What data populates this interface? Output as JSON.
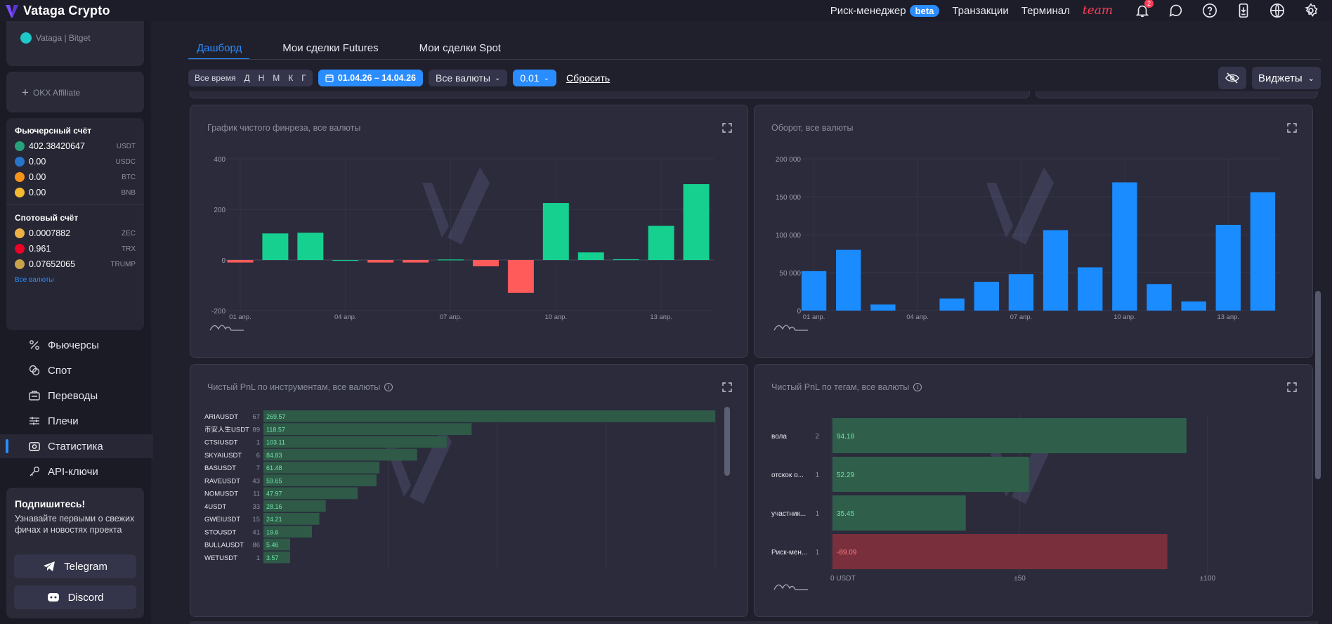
{
  "app": {
    "name": "Vataga Crypto"
  },
  "topnav": {
    "risk_manager": "Риск-менеджер",
    "beta": "beta",
    "transactions": "Транзакции",
    "terminal": "Терминал",
    "team": "team",
    "notif_count": "2"
  },
  "sidebar": {
    "exchange": "Vataga | Bitget",
    "okx": "OKX Affiliate",
    "futures_account": {
      "title": "Фьючерсный счёт",
      "rows": [
        {
          "value": "402.38420647",
          "currency": "USDT",
          "color": "#26a17b"
        },
        {
          "value": "0.00",
          "currency": "USDC",
          "color": "#2775ca"
        },
        {
          "value": "0.00",
          "currency": "BTC",
          "color": "#f7931a"
        },
        {
          "value": "0.00",
          "currency": "BNB",
          "color": "#f3ba2f"
        }
      ]
    },
    "spot_account": {
      "title": "Спотовый счёт",
      "rows": [
        {
          "value": "0.0007882",
          "currency": "ZEC",
          "color": "#ecb244"
        },
        {
          "value": "0.961",
          "currency": "TRX",
          "color": "#ef0027"
        },
        {
          "value": "0.07652065",
          "currency": "TRUMP",
          "color": "#c9a24b"
        }
      ],
      "all_link": "Все валюты"
    },
    "menu": [
      {
        "label": "Фьючерсы",
        "icon": "percent-icon"
      },
      {
        "label": "Спот",
        "icon": "coins-icon"
      },
      {
        "label": "Переводы",
        "icon": "transfer-icon"
      },
      {
        "label": "Плечи",
        "icon": "sliders-icon"
      },
      {
        "label": "Статистика",
        "icon": "stats-icon"
      },
      {
        "label": "API-ключи",
        "icon": "key-icon"
      }
    ],
    "subscribe": {
      "title": "Подпишитесь!",
      "text1": "Узнавайте первыми о свежих",
      "text2": "фичах и новостях проекта",
      "telegram": "Telegram",
      "discord": "Discord"
    }
  },
  "tabs": [
    "Дашборд",
    "Мои сделки Futures",
    "Мои сделки Spot"
  ],
  "filters": {
    "periods": [
      "Все время",
      "Д",
      "Н",
      "М",
      "К",
      "Г"
    ],
    "date_range": "01.04.26 – 14.04.26",
    "currencies": "Все валюты",
    "threshold": "0.01",
    "reset": "Сбросить",
    "widgets": "Виджеты"
  },
  "panels": {
    "netfin": "График чистого финреза, все валюты",
    "turnover": "Оборот, все валюты",
    "pnl_instr": "Чистый PnL по инструментам, все валюты",
    "pnl_tags": "Чистый PnL по тегам, все валюты"
  },
  "chart_data": [
    {
      "type": "bar",
      "title": "График чистого финреза, все валюты",
      "x_tick_labels": [
        "01 апр.",
        "04 апр.",
        "07 апр.",
        "10 апр.",
        "13 апр."
      ],
      "categories": [
        "01",
        "02",
        "03",
        "04",
        "05",
        "06",
        "07",
        "08",
        "09",
        "10",
        "11",
        "12",
        "13",
        "14"
      ],
      "values": [
        -10,
        105,
        108,
        0,
        -10,
        -10,
        2,
        -25,
        -130,
        225,
        30,
        3,
        135,
        300
      ],
      "ylim": [
        -200,
        400
      ],
      "yticks": [
        400,
        200,
        0,
        -200
      ],
      "colors": {
        "positive": "#16d08f",
        "negative": "#ff5b5b"
      }
    },
    {
      "type": "bar",
      "title": "Оборот, все валюты",
      "x_tick_labels": [
        "01 апр.",
        "04 апр.",
        "07 апр.",
        "10 апр.",
        "13 апр."
      ],
      "categories": [
        "01",
        "02",
        "03",
        "04",
        "05",
        "06",
        "07",
        "08",
        "09",
        "10",
        "11",
        "12",
        "13",
        "14"
      ],
      "values": [
        52000,
        80000,
        8000,
        0,
        16000,
        38000,
        48000,
        106000,
        57000,
        169000,
        35000,
        12000,
        113000,
        156000
      ],
      "ylim": [
        0,
        200000
      ],
      "yticks": [
        200000,
        150000,
        100000,
        50000,
        0
      ],
      "ytick_labels": [
        "200 000",
        "150 000",
        "100 000",
        "50 000",
        "0"
      ],
      "colors": {
        "bar": "#1a8cff"
      }
    },
    {
      "type": "bar",
      "orientation": "horizontal",
      "title": "Чистый PnL по инструментам, все валюты",
      "categories": [
        "ARIAUSDT",
        "币安人生USDT",
        "CTSIUSDT",
        "SKYAIUSDT",
        "BASUSDT",
        "RAVEUSDT",
        "NOMUSDT",
        "4USDT",
        "GWEIUSDT",
        "STOUSDT",
        "BULLAUSDT",
        "WETUSDT"
      ],
      "counts": [
        "67",
        "89",
        "1",
        "6",
        "7",
        "43",
        "11",
        "33",
        "15",
        "41",
        "86",
        "1"
      ],
      "values": [
        269.57,
        118.57,
        103.11,
        84.83,
        61.48,
        59.65,
        47.97,
        28.16,
        24.21,
        19.6,
        5.46,
        3.57
      ],
      "value_labels": [
        "269.57",
        "118.57",
        "103.11",
        "84.83",
        "61.48",
        "59.65",
        "47.97",
        "28.16",
        "24.21",
        "19.6",
        "5.46",
        "3.57"
      ]
    },
    {
      "type": "bar",
      "orientation": "horizontal",
      "title": "Чистый PnL по тегам, все валюты",
      "categories": [
        "вола",
        "отскок о...",
        "участник...",
        "Риск-мен..."
      ],
      "counts": [
        "2",
        "1",
        "1",
        "1"
      ],
      "values": [
        94.18,
        52.29,
        35.45,
        -89.09
      ],
      "value_labels": [
        "94.18",
        "52.29",
        "35.45",
        "-89.09"
      ],
      "x_tick_labels": [
        "0 USDT",
        "±50",
        "±100"
      ],
      "xlim": [
        0,
        100
      ],
      "colors": {
        "positive": "#2f5f4a",
        "negative": "#7a2f3c"
      }
    }
  ]
}
